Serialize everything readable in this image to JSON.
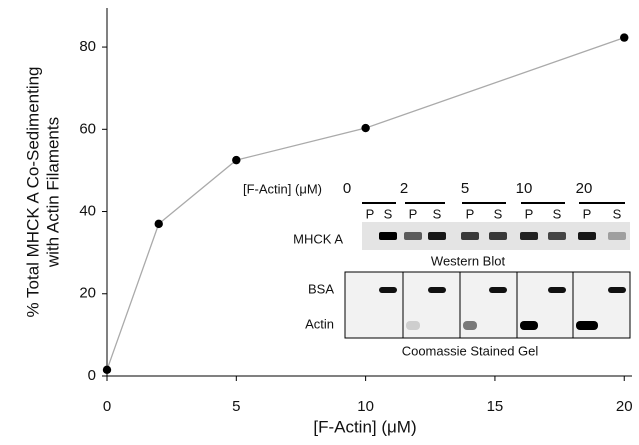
{
  "chart_data": {
    "type": "line",
    "x": [
      0,
      2,
      5,
      10,
      20
    ],
    "values": [
      1.5,
      37,
      52.5,
      60.3,
      82.3
    ],
    "color": "#aaaaaa",
    "marker_color": "#000000",
    "xlabel": "[F-Actin] (μM)",
    "ylabel": [
      "% Total MHCK A Co-Sedimenting",
      "with Actin Filaments"
    ],
    "xlim": [
      0,
      20.3
    ],
    "ylim": [
      0,
      89.5
    ],
    "xticks": [
      0,
      5,
      10,
      15,
      20
    ],
    "yticks": [
      0,
      20,
      40,
      60,
      80
    ],
    "inset": {
      "header": "[F-Actin] (μM)",
      "lanes": [
        "0",
        "2",
        "5",
        "10",
        "20"
      ],
      "fractions": [
        "P",
        "S"
      ],
      "blot_row": "MHCK A",
      "blot_caption": "Western Blot",
      "gel_rows": [
        "BSA",
        "Actin"
      ],
      "gel_caption": "Coomassie Stained Gel"
    }
  }
}
